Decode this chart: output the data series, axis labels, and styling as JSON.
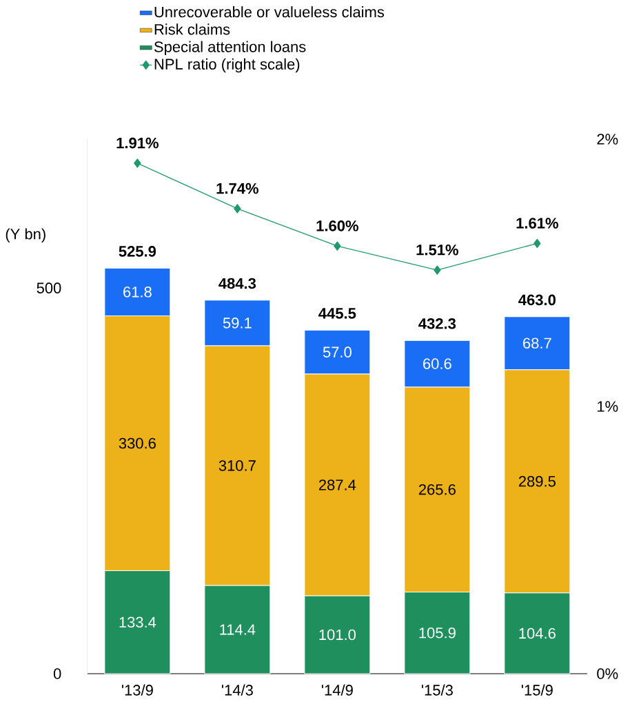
{
  "chart_data": {
    "type": "bar",
    "stacked": true,
    "ylabel": "(Y bn)",
    "categories": [
      "'13/9",
      "'14/3",
      "'14/9",
      "'15/3",
      "'15/9"
    ],
    "series": [
      {
        "name": "Special attention loans",
        "color": "#1f8f5e",
        "values": [
          133.4,
          114.4,
          101.0,
          105.9,
          104.6
        ],
        "value_labels": [
          "133.4",
          "114.4",
          "101.0",
          "105.9",
          "104.6"
        ]
      },
      {
        "name": "Risk claims",
        "color": "#edb119",
        "values": [
          330.6,
          310.7,
          287.4,
          265.6,
          289.5
        ],
        "value_labels": [
          "330.6",
          "310.7",
          "287.4",
          "265.6",
          "289.5"
        ]
      },
      {
        "name": "Unrecoverable or valueless claims",
        "color": "#1a6ef5",
        "values": [
          61.8,
          59.1,
          57.0,
          60.6,
          68.7
        ],
        "value_labels": [
          "61.8",
          "59.1",
          "57.0",
          "60.6",
          "68.7"
        ]
      },
      {
        "name": "NPL ratio (right scale)",
        "type": "line",
        "axis": "y2",
        "color": "#1f9a6a",
        "marker": "diamond",
        "line_style": "solid",
        "values": [
          1.91,
          1.74,
          1.6,
          1.51,
          1.61
        ],
        "value_labels": [
          "1.91%",
          "1.74%",
          "1.60%",
          "1.51%",
          "1.61%"
        ]
      }
    ],
    "totals": [
      "525.9",
      "484.3",
      "445.5",
      "432.3",
      "463.0"
    ],
    "ylim": [
      0,
      693
    ],
    "yticks": [
      0,
      500
    ],
    "y2lim": [
      0,
      2
    ],
    "y2ticks": [
      {
        "value": 0,
        "label": "0%"
      },
      {
        "value": 1,
        "label": "1%"
      },
      {
        "value": 2,
        "label": "2%"
      }
    ],
    "legend": "top"
  }
}
